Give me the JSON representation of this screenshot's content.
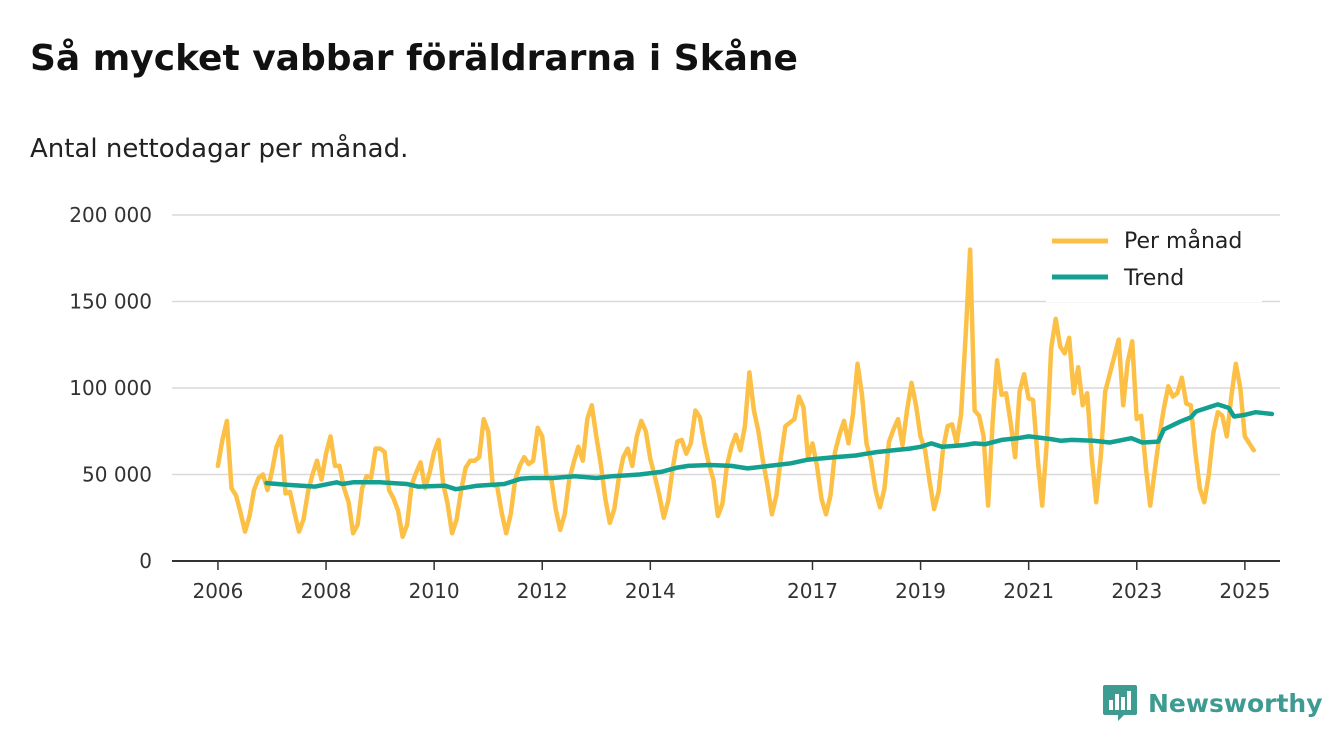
{
  "header": {
    "title": "Så mycket vabbar föräldrarna i Skåne",
    "subtitle": "Antal nettodagar per månad."
  },
  "brand": {
    "name": "Newsworthy",
    "icon": "newsworthy-logo-icon",
    "color": "#3d9b91"
  },
  "colors": {
    "monthly": "#fdc047",
    "trend": "#13a091",
    "grid": "#d9d9d9",
    "axis": "#333333"
  },
  "chart_data": {
    "type": "line",
    "title": "Så mycket vabbar föräldrarna i Skåne",
    "subtitle": "Antal nettodagar per månad.",
    "xlabel": "",
    "ylabel": "",
    "ylim": [
      0,
      200000
    ],
    "xlim": [
      2005.15,
      2025.65
    ],
    "y_ticks": [
      0,
      50000,
      100000,
      150000,
      200000
    ],
    "y_tick_labels": [
      "0",
      "50 000",
      "100 000",
      "150 000",
      "200 000"
    ],
    "x_ticks": [
      2006,
      2008,
      2010,
      2012,
      2014,
      2017,
      2019,
      2021,
      2023,
      2025
    ],
    "x_tick_labels": [
      "2006",
      "2008",
      "2010",
      "2012",
      "2014",
      "2017",
      "2019",
      "2021",
      "2023",
      "2025"
    ],
    "grid": true,
    "legend_position": "top-right",
    "series": [
      {
        "name": "Per månad",
        "color": "#fdc047",
        "x_start": 2006.0,
        "step": 0.08333,
        "values": [
          55000,
          70000,
          81000,
          42000,
          38000,
          28000,
          17000,
          26000,
          41000,
          48000,
          50000,
          41000,
          52000,
          66000,
          72000,
          39000,
          40000,
          28000,
          17000,
          24000,
          40000,
          50000,
          58000,
          47000,
          62000,
          72000,
          55000,
          55000,
          42000,
          34000,
          16000,
          21000,
          42000,
          49000,
          48000,
          65000,
          65000,
          63000,
          41000,
          36000,
          29000,
          14000,
          21000,
          44000,
          51000,
          57000,
          42000,
          51000,
          63000,
          70000,
          45000,
          33000,
          16000,
          24000,
          41000,
          54000,
          58000,
          58000,
          60000,
          82000,
          75000,
          44000,
          43000,
          28000,
          16000,
          27000,
          47000,
          55000,
          60000,
          56000,
          58000,
          77000,
          72000,
          48000,
          48000,
          30000,
          18000,
          27000,
          47000,
          57000,
          66000,
          58000,
          82000,
          90000,
          72000,
          56000,
          36000,
          22000,
          30000,
          48000,
          60000,
          65000,
          55000,
          72000,
          81000,
          75000,
          59000,
          49000,
          38000,
          25000,
          35000,
          54000,
          69000,
          70000,
          62000,
          68000,
          87000,
          83000,
          68000,
          56000,
          47000,
          26000,
          33000,
          55000,
          66000,
          73000,
          64000,
          78000,
          109000,
          87000,
          75000,
          58000,
          44000,
          27000,
          38000,
          60000,
          78000,
          80000,
          82000,
          95000,
          89000,
          60000,
          68000,
          55000,
          36000,
          27000,
          38000,
          63000,
          73000,
          81000,
          68000,
          85000,
          114000,
          96000,
          68000,
          58000,
          41000,
          31000,
          42000,
          69000,
          76000,
          82000,
          67000,
          87000,
          103000,
          90000,
          72000,
          64000,
          46000,
          30000,
          40000,
          65000,
          78000,
          79000,
          68000,
          85000,
          130000,
          180000,
          87000,
          84000,
          72000,
          32000,
          80000,
          116000,
          96000,
          97000,
          80000,
          60000,
          98000,
          108000,
          94000,
          93000,
          60000,
          32000,
          68000,
          123000,
          140000,
          124000,
          120000,
          129000,
          97000,
          112000,
          90000,
          97000,
          60000,
          34000,
          60000,
          98000,
          108000,
          118000,
          128000,
          90000,
          115000,
          127000,
          82000,
          84000,
          55000,
          32000,
          52000,
          72000,
          88000,
          101000,
          95000,
          97000,
          106000,
          91000,
          90000,
          63000,
          42000,
          34000,
          50000,
          74000,
          86000,
          84000,
          72000,
          95000,
          114000,
          100000,
          72000,
          68000,
          64000
        ]
      },
      {
        "name": "Trend",
        "color": "#13a091",
        "points": [
          [
            2006.9,
            45000
          ],
          [
            2007.3,
            44000
          ],
          [
            2007.8,
            43000
          ],
          [
            2008.2,
            45500
          ],
          [
            2008.3,
            44500
          ],
          [
            2008.5,
            45500
          ],
          [
            2009.0,
            45500
          ],
          [
            2009.5,
            44500
          ],
          [
            2009.7,
            43000
          ],
          [
            2010.2,
            43500
          ],
          [
            2010.4,
            41500
          ],
          [
            2010.8,
            43500
          ],
          [
            2011.3,
            44500
          ],
          [
            2011.6,
            47500
          ],
          [
            2011.8,
            48000
          ],
          [
            2012.2,
            48000
          ],
          [
            2012.6,
            49000
          ],
          [
            2013.0,
            48000
          ],
          [
            2013.3,
            49000
          ],
          [
            2013.8,
            50000
          ],
          [
            2014.2,
            51500
          ],
          [
            2014.5,
            54000
          ],
          [
            2014.7,
            55000
          ],
          [
            2015.1,
            55500
          ],
          [
            2015.5,
            55000
          ],
          [
            2015.8,
            53500
          ],
          [
            2016.2,
            55000
          ],
          [
            2016.6,
            56500
          ],
          [
            2016.9,
            58500
          ],
          [
            2017.4,
            60000
          ],
          [
            2017.8,
            61000
          ],
          [
            2018.0,
            62000
          ],
          [
            2018.2,
            63000
          ],
          [
            2018.5,
            64000
          ],
          [
            2018.8,
            65000
          ],
          [
            2019.0,
            66000
          ],
          [
            2019.2,
            68000
          ],
          [
            2019.4,
            66000
          ],
          [
            2019.6,
            66500
          ],
          [
            2019.8,
            67000
          ],
          [
            2020.0,
            68000
          ],
          [
            2020.2,
            67500
          ],
          [
            2020.5,
            70000
          ],
          [
            2020.8,
            71000
          ],
          [
            2021.0,
            72000
          ],
          [
            2021.4,
            70500
          ],
          [
            2021.6,
            69500
          ],
          [
            2021.8,
            70000
          ],
          [
            2022.2,
            69500
          ],
          [
            2022.5,
            68500
          ],
          [
            2022.9,
            71000
          ],
          [
            2023.1,
            68500
          ],
          [
            2023.4,
            69000
          ],
          [
            2023.5,
            76000
          ],
          [
            2023.8,
            80500
          ],
          [
            2024.0,
            83000
          ],
          [
            2024.1,
            86500
          ],
          [
            2024.3,
            88500
          ],
          [
            2024.5,
            90500
          ],
          [
            2024.7,
            88500
          ],
          [
            2024.8,
            83500
          ],
          [
            2025.0,
            84500
          ],
          [
            2025.2,
            86000
          ],
          [
            2025.5,
            85000
          ]
        ]
      }
    ]
  }
}
